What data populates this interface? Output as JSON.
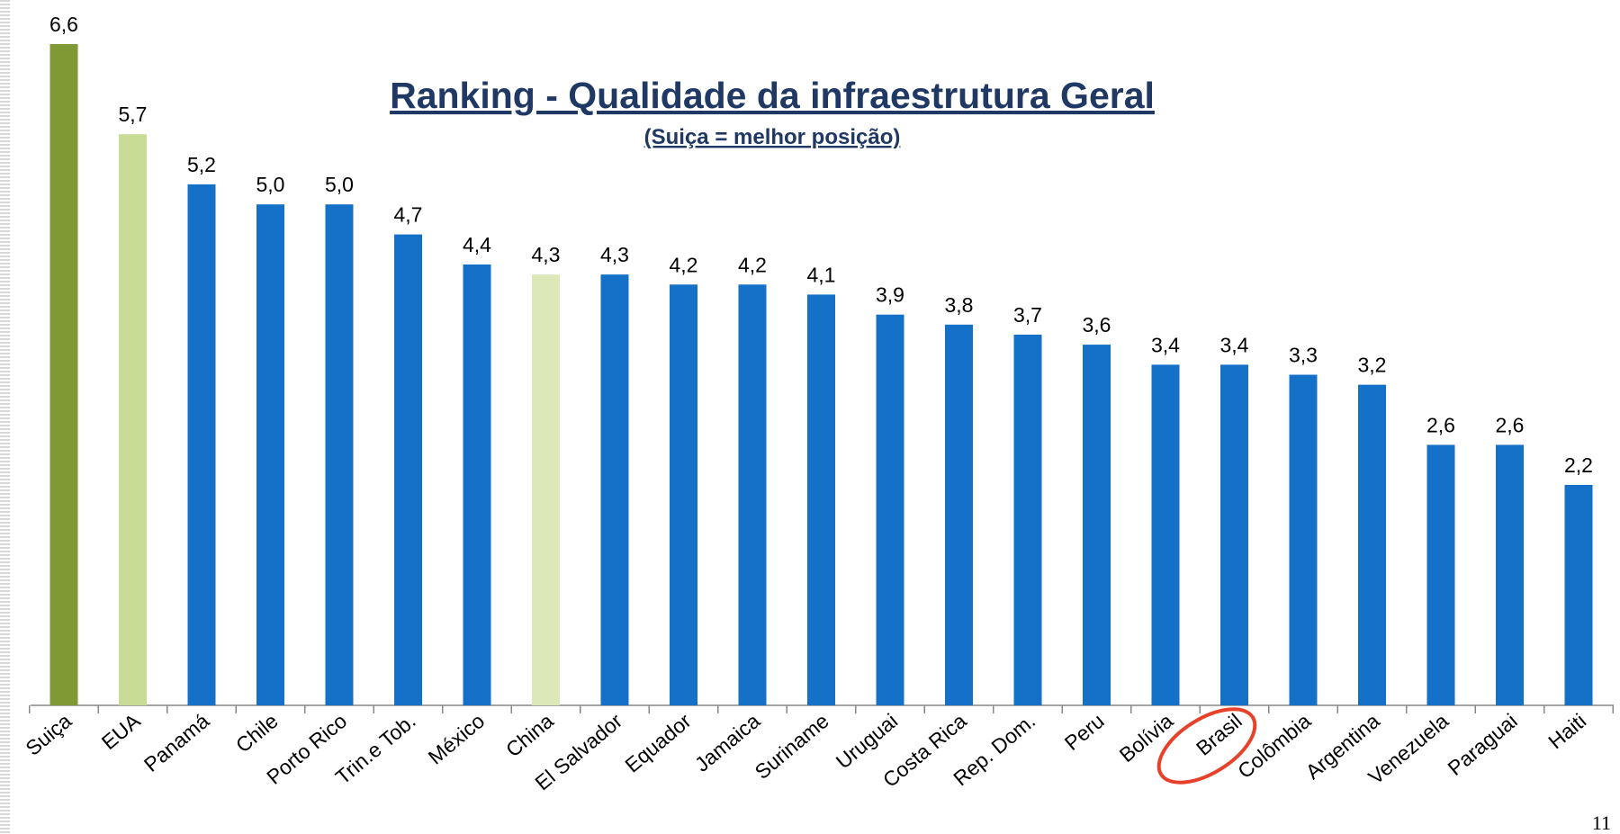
{
  "chart_data": {
    "type": "bar",
    "title": "Ranking - Qualidade da infraestrutura Geral",
    "subtitle": "(Suiça = melhor posição)",
    "page_number": "11",
    "categories": [
      "Suiça",
      "EUA",
      "Panamá",
      "Chile",
      "Porto Rico",
      "Trin.e Tob.",
      "México",
      "China",
      "El Salvador",
      "Equador",
      "Jamaica",
      "Suriname",
      "Uruguai",
      "Costa Rica",
      "Rep. Dom.",
      "Peru",
      "Bolívia",
      "Brasil",
      "Colômbia",
      "Argentina",
      "Venezuela",
      "Paraguai",
      "Haiti"
    ],
    "values": [
      6.6,
      5.7,
      5.2,
      5.0,
      5.0,
      4.7,
      4.4,
      4.3,
      4.3,
      4.2,
      4.2,
      4.1,
      3.9,
      3.8,
      3.7,
      3.6,
      3.4,
      3.4,
      3.3,
      3.2,
      2.6,
      2.6,
      2.2
    ],
    "value_labels": [
      "6,6",
      "5,7",
      "5,2",
      "5,0",
      "5,0",
      "4,7",
      "4,4",
      "4,3",
      "4,3",
      "4,2",
      "4,2",
      "4,1",
      "3,9",
      "3,8",
      "3,7",
      "3,6",
      "3,4",
      "3,4",
      "3,3",
      "3,2",
      "2,6",
      "2,6",
      "2,2"
    ],
    "colors": [
      "#7f9a34",
      "#c9dc96",
      "#1570c8",
      "#1570c8",
      "#1570c8",
      "#1570c8",
      "#1570c8",
      "#dce8b8",
      "#1570c8",
      "#1570c8",
      "#1570c8",
      "#1570c8",
      "#1570c8",
      "#1570c8",
      "#1570c8",
      "#1570c8",
      "#1570c8",
      "#1570c8",
      "#1570c8",
      "#1570c8",
      "#1570c8",
      "#1570c8",
      "#1570c8"
    ]
  }
}
